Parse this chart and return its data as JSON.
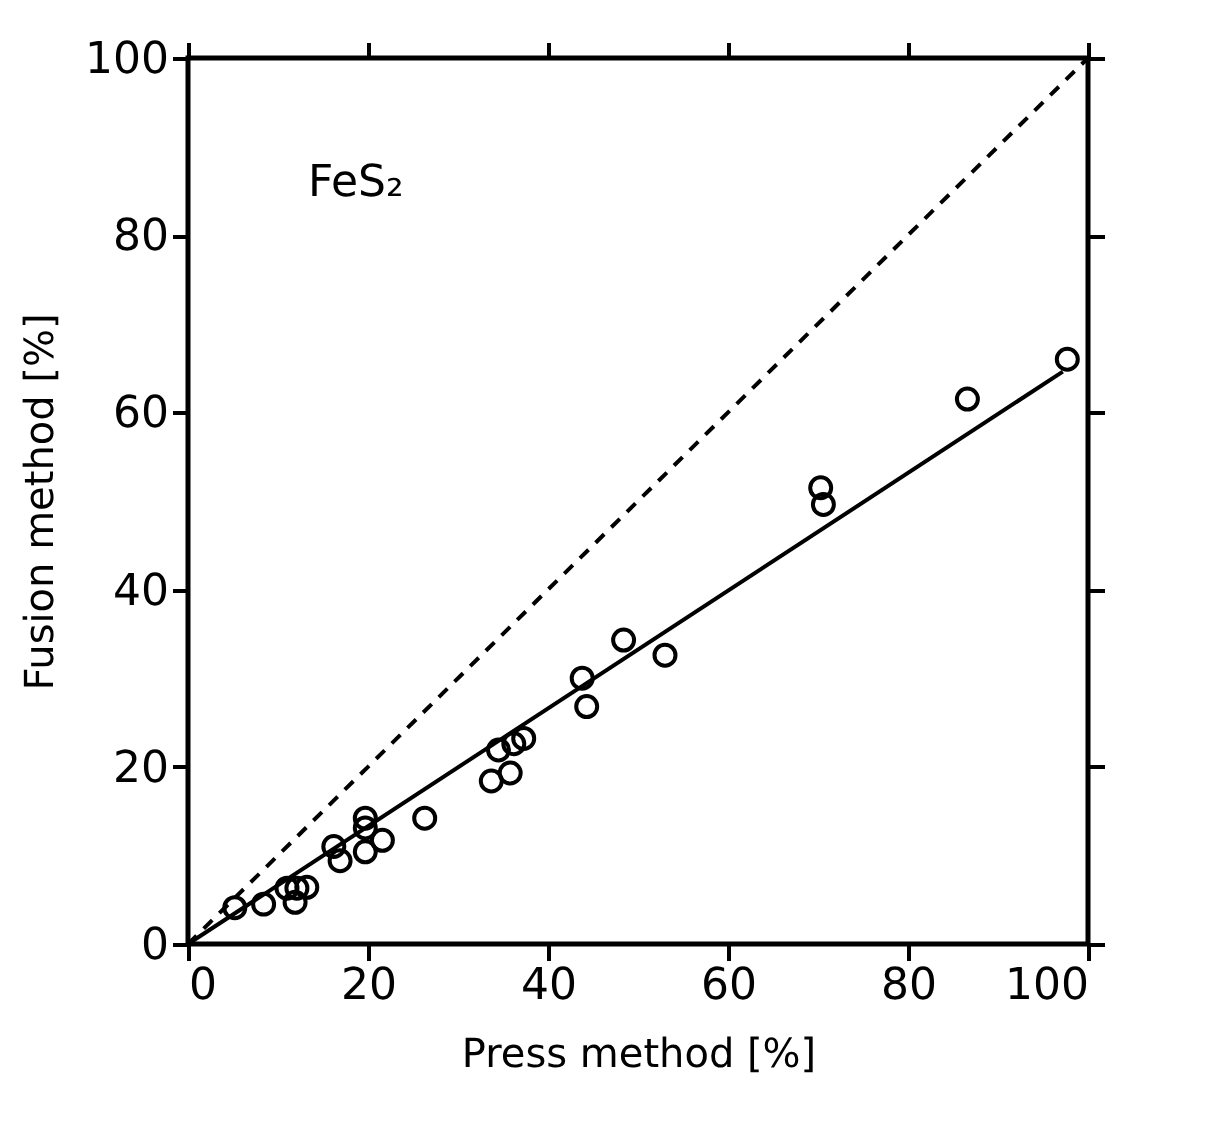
{
  "chart_data": {
    "type": "scatter",
    "xlabel": "Press method [%]",
    "ylabel": "Fusion method [%]",
    "annotations": [
      "FeS₂"
    ],
    "xlim": [
      0,
      100
    ],
    "ylim": [
      0,
      100
    ],
    "xticks": [
      0,
      20,
      40,
      60,
      80,
      100
    ],
    "yticks": [
      0,
      20,
      40,
      60,
      80,
      100
    ],
    "grid": false,
    "marker": "circle",
    "series": [
      {
        "color": "#000000",
        "x": [
          5.2,
          8.4,
          11,
          11.9,
          12.1,
          13.2,
          16.2,
          16.9,
          19.7,
          19.7,
          19.7,
          21.6,
          26.3,
          33.7,
          34.5,
          35.8,
          36.2,
          37.3,
          43.8,
          44.3,
          48.4,
          53.0,
          70.3,
          70.6,
          86.6,
          97.7
        ],
        "values": [
          4.1,
          4.5,
          6.3,
          4.7,
          6.3,
          6.4,
          11.0,
          9.4,
          14.2,
          13.1,
          10.4,
          11.7,
          14.2,
          18.4,
          21.9,
          19.3,
          22.6,
          23.2,
          30.0,
          26.8,
          34.3,
          32.6,
          51.5,
          49.6,
          61.5,
          66.0
        ]
      },
      {
        "type": "line",
        "color": "#000000",
        "line_style": "dashed",
        "marker": "none",
        "x": [
          0,
          100
        ],
        "values": [
          0,
          100
        ]
      },
      {
        "type": "line",
        "color": "#000000",
        "line_style": "solid",
        "marker": "none",
        "x": [
          0,
          97.2
        ],
        "values": [
          0,
          64.6
        ]
      }
    ]
  }
}
